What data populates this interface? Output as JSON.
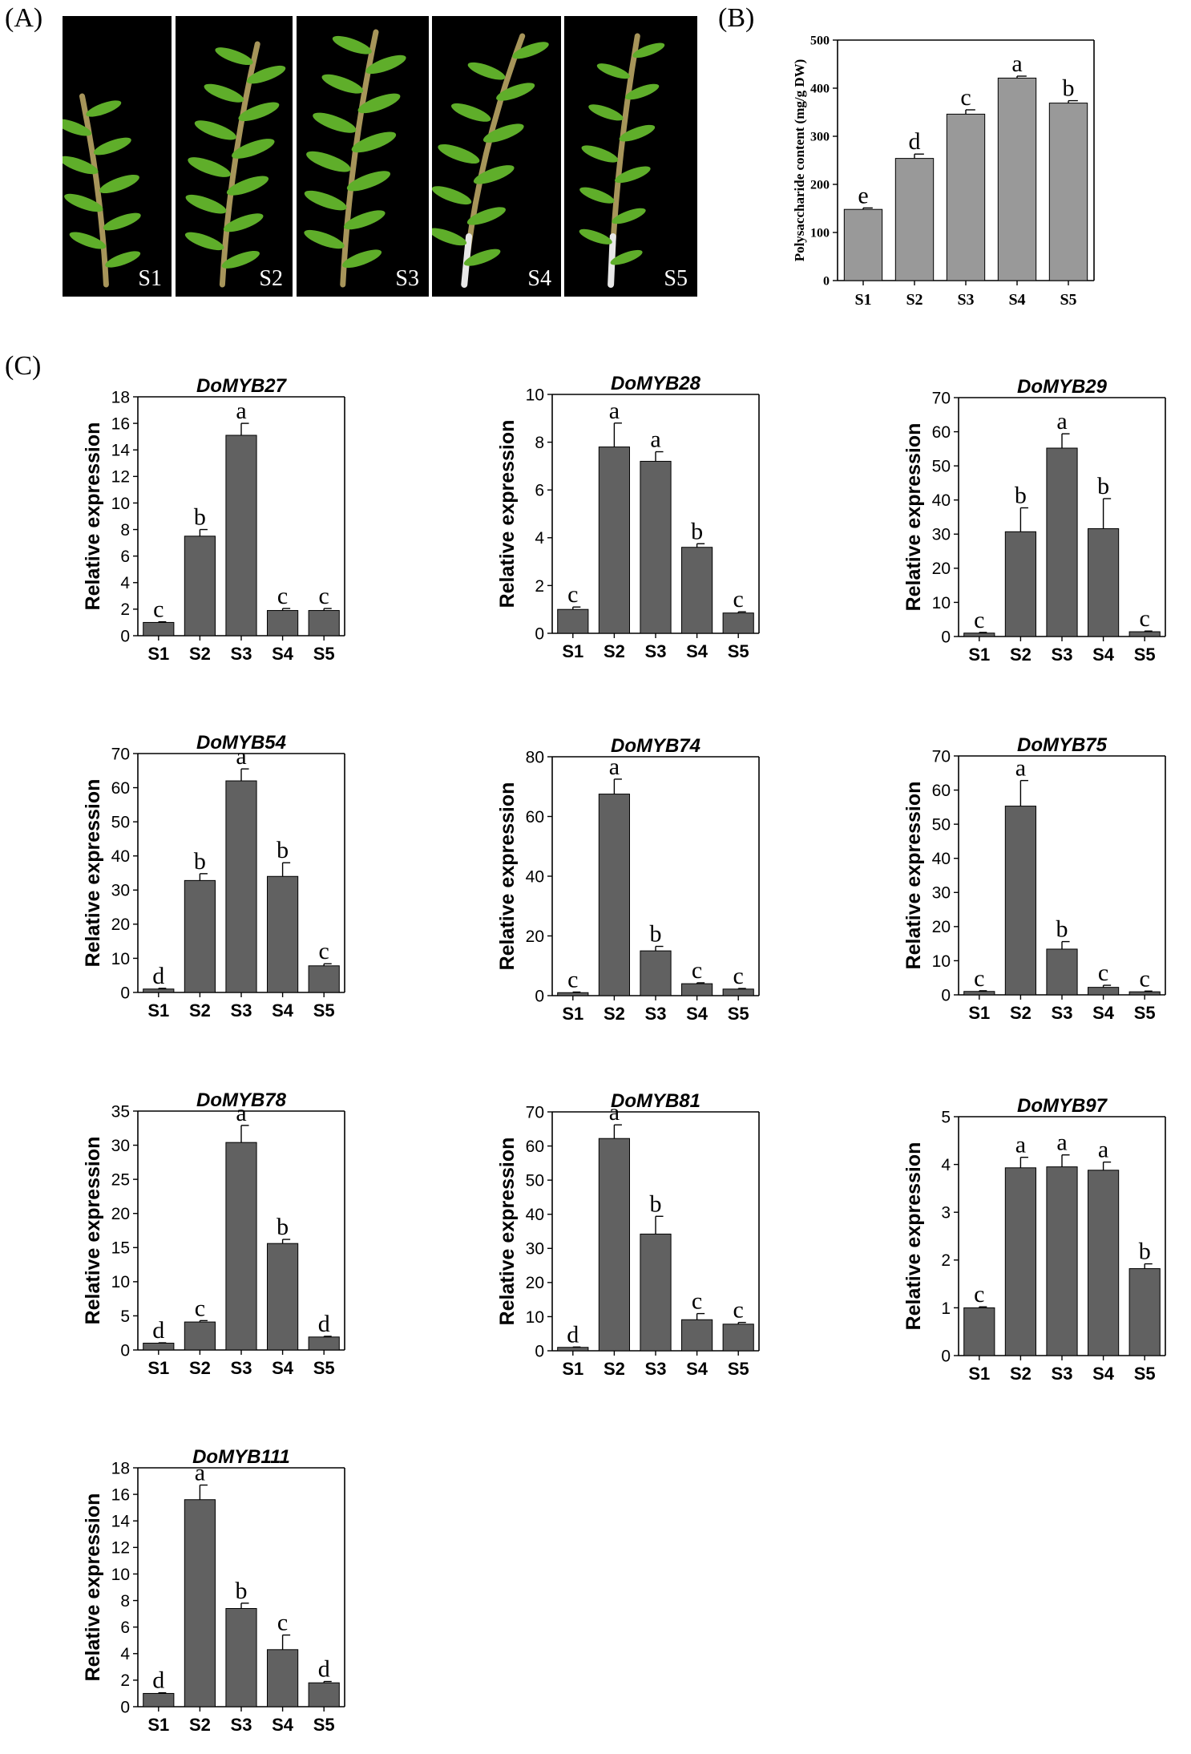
{
  "panels": {
    "a_label": "(A)",
    "b_label": "(B)",
    "c_label": "(C)"
  },
  "photos": {
    "labels": [
      "S1",
      "S2",
      "S3",
      "S4",
      "S5"
    ],
    "background_color": "#000000",
    "leaf_color": "#5fae2a",
    "stem_color": "#a7955a"
  },
  "chart_data": [
    {
      "id": "polysaccharide",
      "type": "bar",
      "title": "",
      "xlabel": "",
      "ylabel": "Polysaccharide content (mg/g DW)",
      "categories": [
        "S1",
        "S2",
        "S3",
        "S4",
        "S5"
      ],
      "values": [
        148,
        254,
        346,
        421,
        369
      ],
      "errors": [
        3,
        9,
        9,
        4,
        5
      ],
      "letters": [
        "e",
        "d",
        "c",
        "a",
        "b"
      ],
      "ylim": [
        0,
        500
      ],
      "yticks": [
        0,
        100,
        200,
        300,
        400,
        500
      ],
      "bar_color": "#999999",
      "grid": false
    },
    {
      "id": "DoMYB27",
      "type": "bar",
      "title": "DoMYB27",
      "xlabel": "",
      "ylabel": "Relative expression",
      "categories": [
        "S1",
        "S2",
        "S3",
        "S4",
        "S5"
      ],
      "values": [
        1.0,
        7.5,
        15.1,
        1.9,
        1.9
      ],
      "errors": [
        0.05,
        0.5,
        0.9,
        0.15,
        0.15
      ],
      "letters": [
        "c",
        "b",
        "a",
        "c",
        "c"
      ],
      "ylim": [
        0,
        18
      ],
      "yticks": [
        0,
        2,
        4,
        6,
        8,
        10,
        12,
        14,
        16,
        18
      ],
      "bar_color": "#616161",
      "grid": false
    },
    {
      "id": "DoMYB28",
      "type": "bar",
      "title": "DoMYB28",
      "xlabel": "",
      "ylabel": "Relative expression",
      "categories": [
        "S1",
        "S2",
        "S3",
        "S4",
        "S5"
      ],
      "values": [
        1.0,
        7.8,
        7.2,
        3.6,
        0.85
      ],
      "errors": [
        0.1,
        1.0,
        0.4,
        0.15,
        0.05
      ],
      "letters": [
        "c",
        "a",
        "a",
        "b",
        "c"
      ],
      "ylim": [
        0,
        10
      ],
      "yticks": [
        0,
        2,
        4,
        6,
        8,
        10
      ],
      "bar_color": "#616161",
      "grid": false
    },
    {
      "id": "DoMYB29",
      "type": "bar",
      "title": "DoMYB29",
      "xlabel": "",
      "ylabel": "Relative expression",
      "categories": [
        "S1",
        "S2",
        "S3",
        "S4",
        "S5"
      ],
      "values": [
        1.0,
        30.7,
        55.2,
        31.6,
        1.4
      ],
      "errors": [
        0.2,
        7.0,
        4.2,
        8.8,
        0.2
      ],
      "letters": [
        "c",
        "b",
        "a",
        "b",
        "c"
      ],
      "ylim": [
        0,
        70
      ],
      "yticks": [
        0,
        10,
        20,
        30,
        40,
        50,
        60,
        70
      ],
      "bar_color": "#616161",
      "grid": false
    },
    {
      "id": "DoMYB54",
      "type": "bar",
      "title": "DoMYB54",
      "xlabel": "",
      "ylabel": "Relative expression",
      "categories": [
        "S1",
        "S2",
        "S3",
        "S4",
        "S5"
      ],
      "values": [
        1.0,
        32.8,
        62.0,
        34.0,
        7.8
      ],
      "errors": [
        0.2,
        2.0,
        3.5,
        4.0,
        0.6
      ],
      "letters": [
        "d",
        "b",
        "a",
        "b",
        "c"
      ],
      "ylim": [
        0,
        70
      ],
      "yticks": [
        0,
        10,
        20,
        30,
        40,
        50,
        60,
        70
      ],
      "bar_color": "#616161",
      "grid": false
    },
    {
      "id": "DoMYB74",
      "type": "bar",
      "title": "DoMYB74",
      "xlabel": "",
      "ylabel": "Relative expression",
      "categories": [
        "S1",
        "S2",
        "S3",
        "S4",
        "S5"
      ],
      "values": [
        1.0,
        67.5,
        15.0,
        4.0,
        2.2
      ],
      "errors": [
        0.2,
        5.0,
        1.5,
        0.3,
        0.2
      ],
      "letters": [
        "c",
        "a",
        "b",
        "c",
        "c"
      ],
      "ylim": [
        0,
        80
      ],
      "yticks": [
        0,
        20,
        40,
        60,
        80
      ],
      "bar_color": "#616161",
      "grid": false
    },
    {
      "id": "DoMYB75",
      "type": "bar",
      "title": "DoMYB75",
      "xlabel": "",
      "ylabel": "Relative expression",
      "categories": [
        "S1",
        "S2",
        "S3",
        "S4",
        "S5"
      ],
      "values": [
        1.0,
        55.3,
        13.4,
        2.2,
        0.9
      ],
      "errors": [
        0.2,
        7.5,
        2.2,
        0.6,
        0.2
      ],
      "letters": [
        "c",
        "a",
        "b",
        "c",
        "c"
      ],
      "ylim": [
        0,
        70
      ],
      "yticks": [
        0,
        10,
        20,
        30,
        40,
        50,
        60,
        70
      ],
      "bar_color": "#616161",
      "grid": false
    },
    {
      "id": "DoMYB78",
      "type": "bar",
      "title": "DoMYB78",
      "xlabel": "",
      "ylabel": "Relative expression",
      "categories": [
        "S1",
        "S2",
        "S3",
        "S4",
        "S5"
      ],
      "values": [
        1.0,
        4.1,
        30.4,
        15.6,
        1.9
      ],
      "errors": [
        0.05,
        0.2,
        2.5,
        0.6,
        0.1
      ],
      "letters": [
        "d",
        "c",
        "a",
        "b",
        "d"
      ],
      "ylim": [
        0,
        35
      ],
      "yticks": [
        0,
        5,
        10,
        15,
        20,
        25,
        30,
        35
      ],
      "bar_color": "#616161",
      "grid": false
    },
    {
      "id": "DoMYB81",
      "type": "bar",
      "title": "DoMYB81",
      "xlabel": "",
      "ylabel": "Relative expression",
      "categories": [
        "S1",
        "S2",
        "S3",
        "S4",
        "S5"
      ],
      "values": [
        1.0,
        62.2,
        34.2,
        9.1,
        7.8
      ],
      "errors": [
        0.1,
        4.0,
        5.2,
        1.8,
        0.5
      ],
      "letters": [
        "d",
        "a",
        "b",
        "c",
        "c"
      ],
      "ylim": [
        0,
        70
      ],
      "yticks": [
        0,
        10,
        20,
        30,
        40,
        50,
        60,
        70
      ],
      "bar_color": "#616161",
      "grid": false
    },
    {
      "id": "DoMYB97",
      "type": "bar",
      "title": "DoMYB97",
      "xlabel": "",
      "ylabel": "Relative expression",
      "categories": [
        "S1",
        "S2",
        "S3",
        "S4",
        "S5"
      ],
      "values": [
        1.0,
        3.93,
        3.95,
        3.88,
        1.82
      ],
      "errors": [
        0.02,
        0.22,
        0.25,
        0.17,
        0.1
      ],
      "letters": [
        "c",
        "a",
        "a",
        "a",
        "b"
      ],
      "ylim": [
        0,
        5
      ],
      "yticks": [
        0,
        1,
        2,
        3,
        4,
        5
      ],
      "bar_color": "#616161",
      "grid": false
    },
    {
      "id": "DoMYB111",
      "type": "bar",
      "title": "DoMYB111",
      "xlabel": "",
      "ylabel": "Relative expression",
      "categories": [
        "S1",
        "S2",
        "S3",
        "S4",
        "S5"
      ],
      "values": [
        1.0,
        15.6,
        7.4,
        4.3,
        1.8
      ],
      "errors": [
        0.05,
        1.1,
        0.4,
        1.1,
        0.1
      ],
      "letters": [
        "d",
        "a",
        "b",
        "c",
        "d"
      ],
      "ylim": [
        0,
        18
      ],
      "yticks": [
        0,
        2,
        4,
        6,
        8,
        10,
        12,
        14,
        16,
        18
      ],
      "bar_color": "#616161",
      "grid": false
    }
  ]
}
